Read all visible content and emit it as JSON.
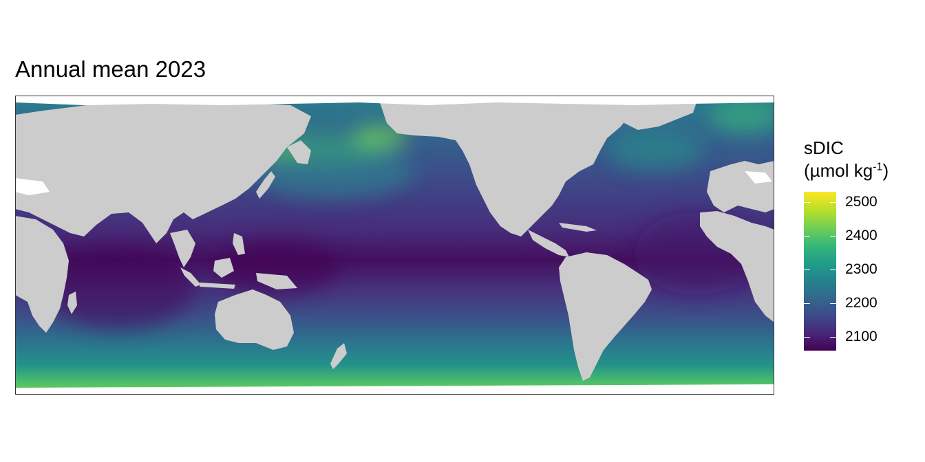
{
  "plot": {
    "title": "Annual mean 2023",
    "variable": "sDIC",
    "unit_open": "(µmol kg",
    "unit_exp": "-1",
    "unit_close": ")"
  },
  "legend": {
    "min": 2060,
    "max": 2530,
    "ticks": [
      {
        "value": 2500,
        "label": "2500"
      },
      {
        "value": 2400,
        "label": "2400"
      },
      {
        "value": 2300,
        "label": "2300"
      },
      {
        "value": 2200,
        "label": "2200"
      },
      {
        "value": 2100,
        "label": "2100"
      }
    ]
  },
  "colors": {
    "land": "#cccccc",
    "sea_ice": "#ffffff",
    "frame": "#333333",
    "palette": [
      "#440154",
      "#482878",
      "#3e4a89",
      "#31688e",
      "#26828e",
      "#1f9e89",
      "#35b779",
      "#6ece58",
      "#b5de2b",
      "#fde725"
    ]
  }
}
